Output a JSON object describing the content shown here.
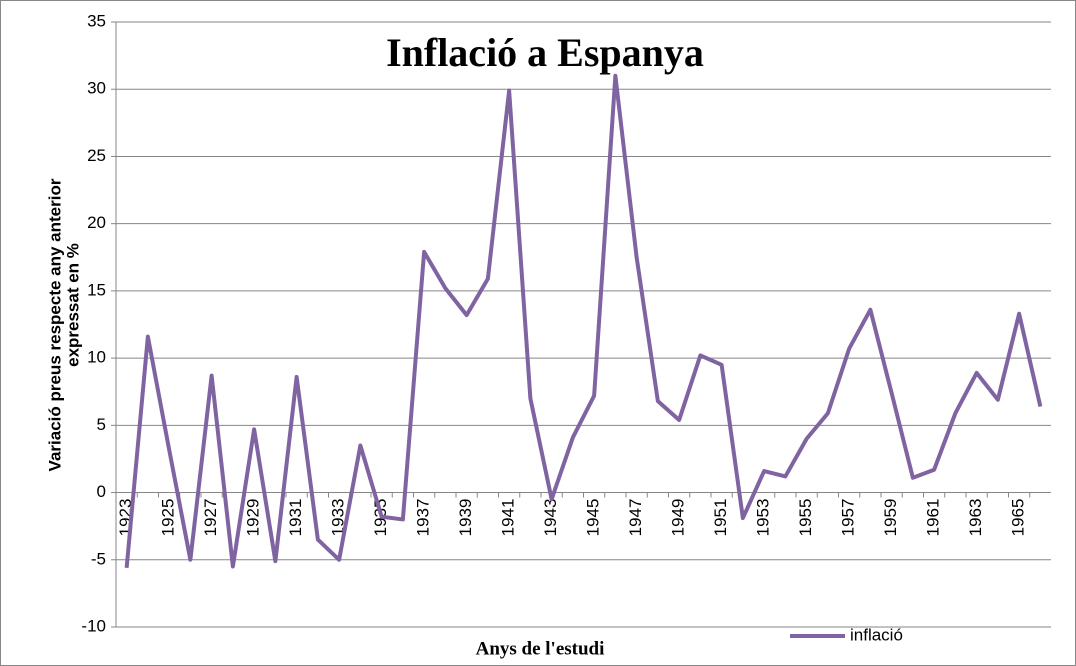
{
  "chart_data": {
    "type": "line",
    "title": "Inflació a Espanya",
    "x_label": "Anys de l'estudi",
    "y_label": [
      "Variació preus respecte any anterior",
      "expressat en %"
    ],
    "categories": [
      "1923",
      null,
      "1925",
      null,
      "1927",
      null,
      "1929",
      null,
      "1931",
      null,
      "1933",
      null,
      "1935",
      null,
      "1937",
      null,
      "1939",
      null,
      "1941",
      null,
      "1943",
      null,
      "1945",
      null,
      "1947",
      null,
      "1949",
      null,
      "1951",
      null,
      "1953",
      null,
      "1955",
      null,
      "1957",
      null,
      "1959",
      null,
      "1961",
      null,
      "1963",
      null,
      "1965",
      null
    ],
    "series": [
      {
        "name": "inflació",
        "color": "#8064a2",
        "values": [
          -5.6,
          11.6,
          3.2,
          -5,
          8.7,
          -5.5,
          4.7,
          -5.1,
          8.6,
          -3.5,
          -5,
          3.5,
          -1.8,
          -2,
          17.9,
          15.2,
          13.2,
          15.9,
          29.9,
          7,
          -0.5,
          4.1,
          7.2,
          31,
          17.5,
          6.8,
          5.4,
          10.2,
          9.5,
          -1.9,
          1.6,
          1.2,
          4,
          5.9,
          10.7,
          13.6,
          7.4,
          1.1,
          1.7,
          5.9,
          8.9,
          6.9,
          13.3,
          6.4
        ]
      }
    ],
    "ylim": [
      -10,
      35
    ],
    "yticks": [
      -10,
      -5,
      0,
      5,
      10,
      15,
      20,
      25,
      30,
      35
    ],
    "grid": true,
    "legend": "bottom-right"
  }
}
